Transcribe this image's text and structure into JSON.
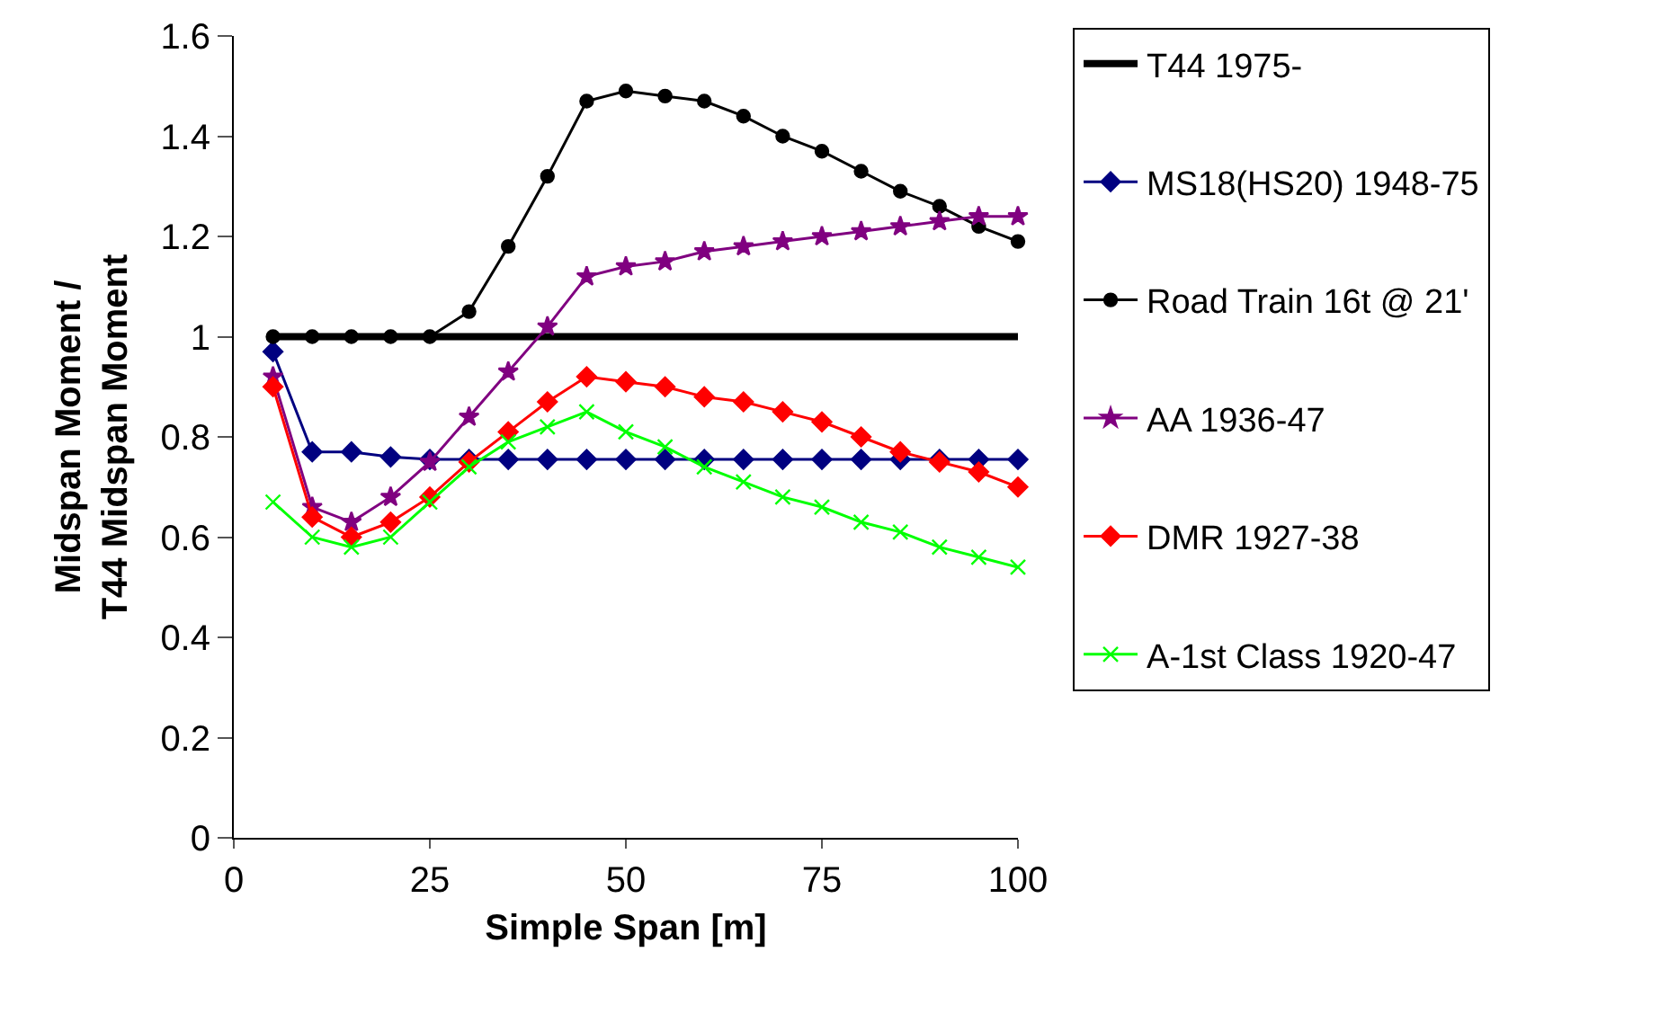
{
  "chart_data": {
    "type": "line",
    "xlabel": "Simple Span [m]",
    "ylabel": "Midspan Moment /\nT44 Midspan Moment",
    "x": [
      5,
      10,
      15,
      20,
      25,
      30,
      35,
      40,
      45,
      50,
      55,
      60,
      65,
      70,
      75,
      80,
      85,
      90,
      95,
      100
    ],
    "xlim": [
      0,
      100
    ],
    "xticks": [
      0,
      25,
      50,
      75,
      100
    ],
    "ylim": [
      0,
      1.6
    ],
    "yticks": [
      0,
      0.2,
      0.4,
      0.6,
      0.8,
      1,
      1.2,
      1.4,
      1.6
    ],
    "grid": false,
    "legend": "right",
    "series": [
      {
        "name": "T44 1975-",
        "color": "#000000",
        "marker": "none",
        "values": [
          1,
          1,
          1,
          1,
          1,
          1,
          1,
          1,
          1,
          1,
          1,
          1,
          1,
          1,
          1,
          1,
          1,
          1,
          1,
          1
        ]
      },
      {
        "name": "MS18(HS20) 1948-75",
        "color": "#000080",
        "marker": "diamond",
        "values": [
          0.97,
          0.77,
          0.77,
          0.76,
          0.755,
          0.755,
          0.755,
          0.755,
          0.755,
          0.755,
          0.755,
          0.755,
          0.755,
          0.755,
          0.755,
          0.755,
          0.755,
          0.755,
          0.755,
          0.755
        ]
      },
      {
        "name": "Road Train 16t @ 21'",
        "color": "#000000",
        "marker": "circle",
        "values": [
          1,
          1,
          1,
          1,
          1,
          1.05,
          1.18,
          1.32,
          1.47,
          1.49,
          1.48,
          1.47,
          1.44,
          1.4,
          1.37,
          1.33,
          1.29,
          1.26,
          1.22,
          1.19
        ]
      },
      {
        "name": "AA 1936-47",
        "color": "#800080",
        "marker": "star",
        "values": [
          0.92,
          0.66,
          0.63,
          0.68,
          0.75,
          0.84,
          0.93,
          1.02,
          1.12,
          1.14,
          1.15,
          1.17,
          1.18,
          1.19,
          1.2,
          1.21,
          1.22,
          1.23,
          1.24,
          1.24
        ]
      },
      {
        "name": "DMR 1927-38",
        "color": "#ff0000",
        "marker": "diamond",
        "values": [
          0.9,
          0.64,
          0.6,
          0.63,
          0.68,
          0.75,
          0.81,
          0.87,
          0.92,
          0.91,
          0.9,
          0.88,
          0.87,
          0.85,
          0.83,
          0.8,
          0.77,
          0.75,
          0.73,
          0.7
        ]
      },
      {
        "name": "A-1st Class 1920-47",
        "color": "#00ff00",
        "marker": "cross",
        "values": [
          0.67,
          0.6,
          0.58,
          0.6,
          0.67,
          0.74,
          0.79,
          0.82,
          0.85,
          0.81,
          0.78,
          0.74,
          0.71,
          0.68,
          0.66,
          0.63,
          0.61,
          0.58,
          0.56,
          0.54
        ]
      }
    ]
  }
}
